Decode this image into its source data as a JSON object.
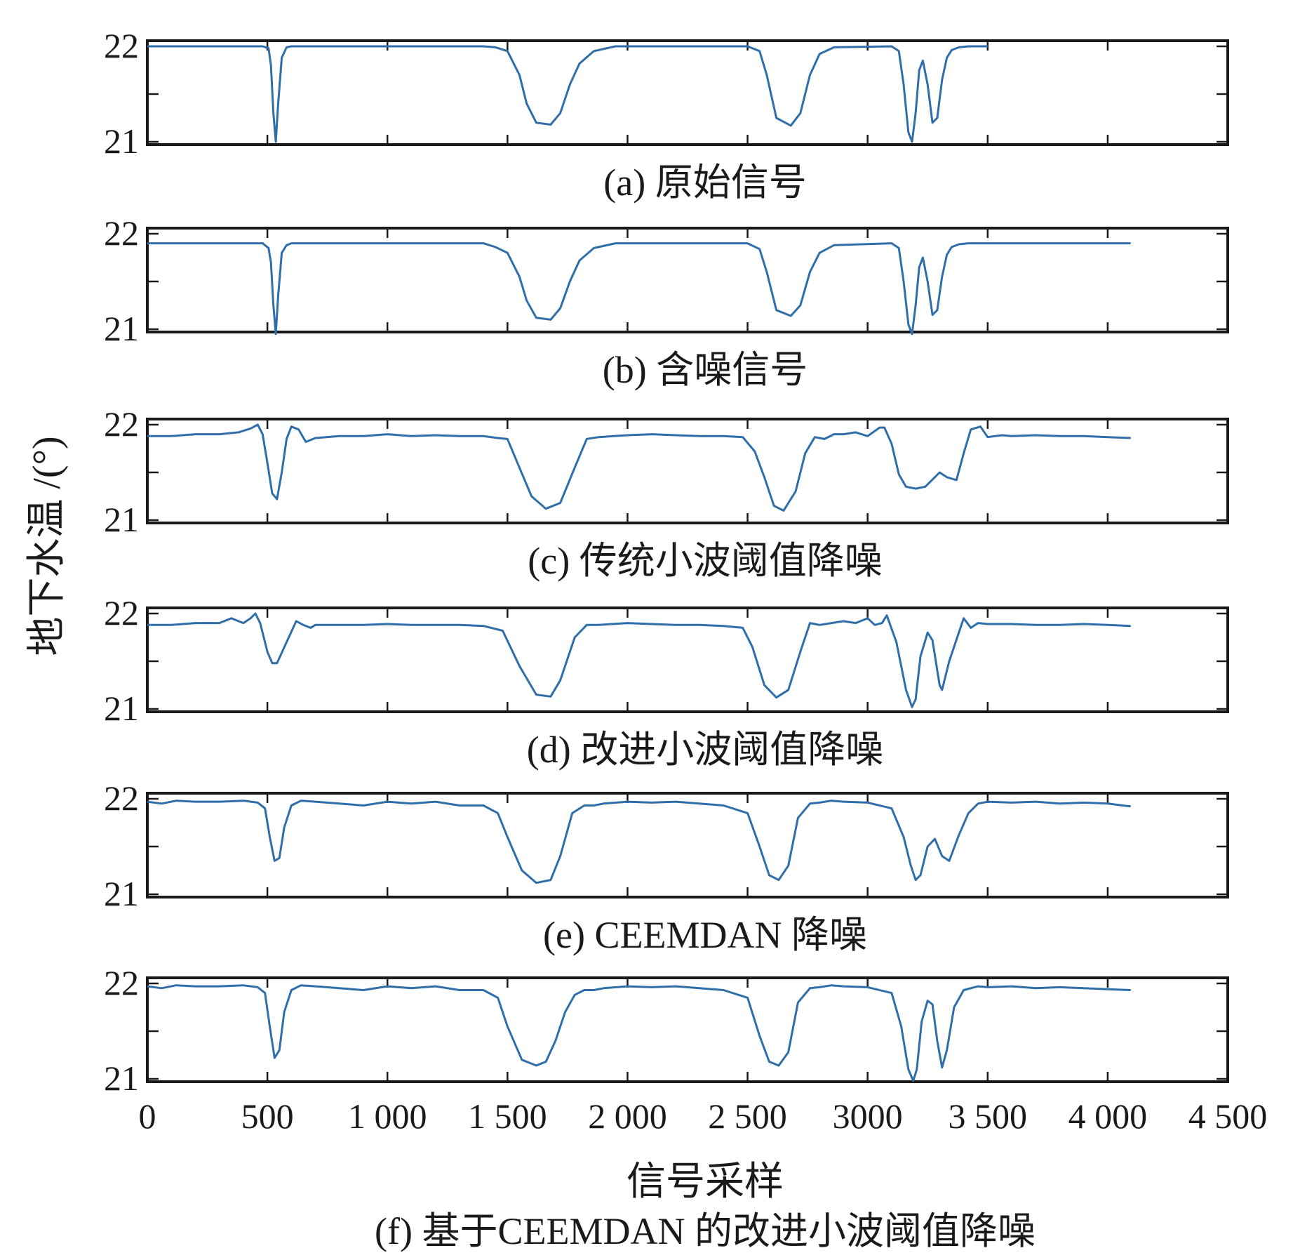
{
  "chart_data": {
    "type": "line",
    "ylabel": "地下水温 /(°)",
    "xlabel": "信号采样",
    "xlim": [
      0,
      4500
    ],
    "x_ticks": [
      0,
      500,
      1000,
      1500,
      2000,
      2500,
      3000,
      3500,
      4000,
      4500
    ],
    "x_tick_labels": [
      "0",
      "500",
      "1 000",
      "1 500",
      "2 000",
      "2 500",
      "3000",
      "3 500",
      "4 000",
      "4 500"
    ],
    "line_color": "#2f6ea8",
    "panels": [
      {
        "caption": "(a) 原始信号",
        "ylim": [
          21,
          22
        ],
        "y_ticks": [
          "22",
          "21"
        ],
        "series": [
          {
            "x": [
              0,
              480,
              505,
              515,
              525,
              535,
              545,
              560,
              580,
              600,
              1400,
              1450,
              1500,
              1550,
              1580,
              1620,
              1680,
              1720,
              1760,
              1800,
              1860,
              1950,
              2500,
              2550,
              2580,
              2620,
              2680,
              2720,
              2760,
              2800,
              2860,
              3100,
              3130,
              3150,
              3170,
              3185,
              3200,
              3215,
              3230,
              3250,
              3270,
              3290,
              3310,
              3330,
              3350,
              3380,
              3420,
              3500
            ],
            "y": [
              22,
              22,
              21.98,
              21.8,
              21.3,
              21.0,
              21.4,
              21.88,
              21.99,
              22,
              22,
              21.99,
              21.95,
              21.7,
              21.4,
              21.2,
              21.18,
              21.3,
              21.6,
              21.82,
              21.95,
              22,
              22,
              21.95,
              21.7,
              21.25,
              21.17,
              21.3,
              21.7,
              21.92,
              21.99,
              22,
              21.95,
              21.6,
              21.1,
              21.0,
              21.3,
              21.75,
              21.85,
              21.6,
              21.2,
              21.25,
              21.65,
              21.88,
              21.96,
              21.99,
              22,
              22
            ]
          }
        ]
      },
      {
        "caption": "(b) 含噪信号",
        "ylim": [
          21,
          22
        ],
        "y_ticks": [
          "22",
          "21"
        ],
        "series": [
          {
            "x": [
              0,
              480,
              505,
              515,
              525,
              535,
              545,
              560,
              580,
              600,
              1400,
              1450,
              1500,
              1550,
              1580,
              1620,
              1680,
              1720,
              1760,
              1800,
              1860,
              1950,
              2500,
              2550,
              2580,
              2620,
              2680,
              2720,
              2760,
              2800,
              2860,
              3100,
              3130,
              3150,
              3170,
              3185,
              3200,
              3215,
              3230,
              3250,
              3270,
              3290,
              3310,
              3330,
              3350,
              3380,
              3420,
              4096
            ],
            "y": [
              21.9,
              21.9,
              21.85,
              21.7,
              21.25,
              20.95,
              21.35,
              21.8,
              21.88,
              21.9,
              21.9,
              21.86,
              21.8,
              21.55,
              21.3,
              21.12,
              21.1,
              21.22,
              21.5,
              21.72,
              21.85,
              21.9,
              21.9,
              21.84,
              21.6,
              21.2,
              21.14,
              21.25,
              21.6,
              21.8,
              21.88,
              21.9,
              21.85,
              21.5,
              21.05,
              20.95,
              21.25,
              21.65,
              21.75,
              21.5,
              21.15,
              21.2,
              21.55,
              21.78,
              21.86,
              21.89,
              21.9,
              21.9
            ]
          }
        ]
      },
      {
        "caption": "(c) 传统小波阈值降噪",
        "ylim": [
          21,
          22
        ],
        "y_ticks": [
          "22",
          "21"
        ],
        "series": [
          {
            "x": [
              0,
              100,
              200,
              300,
              380,
              430,
              460,
              480,
              500,
              520,
              540,
              560,
              580,
              600,
              630,
              660,
              700,
              800,
              900,
              1000,
              1100,
              1200,
              1300,
              1400,
              1460,
              1500,
              1550,
              1600,
              1660,
              1720,
              1780,
              1830,
              1880,
              2000,
              2100,
              2200,
              2300,
              2400,
              2480,
              2530,
              2570,
              2610,
              2650,
              2700,
              2740,
              2780,
              2820,
              2860,
              2900,
              2950,
              3000,
              3050,
              3070,
              3100,
              3130,
              3160,
              3200,
              3240,
              3280,
              3300,
              3330,
              3370,
              3400,
              3430,
              3470,
              3500,
              3560,
              3600,
              3700,
              3800,
              3900,
              4000,
              4096
            ],
            "y": [
              21.88,
              21.88,
              21.9,
              21.9,
              21.92,
              21.96,
              22.0,
              21.9,
              21.6,
              21.28,
              21.22,
              21.5,
              21.85,
              21.98,
              21.95,
              21.82,
              21.86,
              21.88,
              21.88,
              21.9,
              21.88,
              21.89,
              21.88,
              21.88,
              21.86,
              21.85,
              21.55,
              21.25,
              21.12,
              21.18,
              21.55,
              21.85,
              21.87,
              21.89,
              21.9,
              21.89,
              21.88,
              21.88,
              21.87,
              21.72,
              21.45,
              21.15,
              21.1,
              21.3,
              21.7,
              21.87,
              21.85,
              21.9,
              21.9,
              21.92,
              21.88,
              21.97,
              21.97,
              21.8,
              21.48,
              21.35,
              21.33,
              21.35,
              21.45,
              21.5,
              21.45,
              21.42,
              21.7,
              21.95,
              21.98,
              21.87,
              21.89,
              21.88,
              21.89,
              21.88,
              21.88,
              21.87,
              21.86
            ]
          }
        ]
      },
      {
        "caption": "(d) 改进小波阈值降噪",
        "ylim": [
          21,
          22
        ],
        "y_ticks": [
          "22",
          "21"
        ],
        "series": [
          {
            "x": [
              0,
              100,
              200,
              300,
              350,
              400,
              430,
              450,
              470,
              500,
              520,
              540,
              580,
              620,
              650,
              680,
              700,
              800,
              900,
              1000,
              1100,
              1200,
              1300,
              1400,
              1480,
              1550,
              1620,
              1680,
              1720,
              1780,
              1830,
              1880,
              2000,
              2100,
              2200,
              2300,
              2400,
              2480,
              2520,
              2570,
              2620,
              2670,
              2720,
              2760,
              2800,
              2850,
              2900,
              2950,
              3000,
              3030,
              3060,
              3080,
              3120,
              3160,
              3185,
              3200,
              3220,
              3250,
              3270,
              3300,
              3310,
              3340,
              3380,
              3400,
              3430,
              3460,
              3500,
              3600,
              3700,
              3800,
              3900,
              4000,
              4096
            ],
            "y": [
              21.88,
              21.88,
              21.9,
              21.9,
              21.95,
              21.9,
              21.95,
              22.0,
              21.9,
              21.6,
              21.48,
              21.48,
              21.7,
              21.92,
              21.88,
              21.85,
              21.88,
              21.88,
              21.88,
              21.89,
              21.88,
              21.88,
              21.88,
              21.87,
              21.82,
              21.45,
              21.15,
              21.13,
              21.3,
              21.75,
              21.88,
              21.88,
              21.9,
              21.89,
              21.88,
              21.88,
              21.87,
              21.85,
              21.65,
              21.25,
              21.12,
              21.2,
              21.6,
              21.9,
              21.88,
              21.9,
              21.92,
              21.9,
              21.95,
              21.88,
              21.9,
              21.98,
              21.7,
              21.2,
              21.02,
              21.1,
              21.55,
              21.8,
              21.72,
              21.25,
              21.2,
              21.5,
              21.8,
              21.95,
              21.85,
              21.9,
              21.89,
              21.89,
              21.88,
              21.88,
              21.89,
              21.88,
              21.87
            ]
          }
        ]
      },
      {
        "caption": "(e) CEEMDAN 降噪",
        "ylim": [
          21,
          22
        ],
        "y_ticks": [
          "22",
          "21"
        ],
        "series": [
          {
            "x": [
              0,
              60,
              120,
              200,
              300,
              400,
              460,
              490,
              510,
              530,
              550,
              570,
              600,
              640,
              700,
              800,
              900,
              1000,
              1100,
              1200,
              1300,
              1400,
              1460,
              1500,
              1560,
              1620,
              1680,
              1720,
              1770,
              1820,
              1860,
              1900,
              2000,
              2100,
              2200,
              2300,
              2400,
              2500,
              2550,
              2590,
              2630,
              2670,
              2710,
              2760,
              2800,
              2850,
              2900,
              3000,
              3100,
              3150,
              3180,
              3200,
              3220,
              3250,
              3280,
              3310,
              3340,
              3380,
              3420,
              3460,
              3500,
              3600,
              3700,
              3800,
              3900,
              4000,
              4096
            ],
            "y": [
              21.97,
              21.95,
              21.98,
              21.97,
              21.97,
              21.98,
              21.96,
              21.9,
              21.6,
              21.35,
              21.38,
              21.7,
              21.93,
              21.98,
              21.97,
              21.95,
              21.93,
              21.97,
              21.95,
              21.97,
              21.93,
              21.93,
              21.85,
              21.6,
              21.25,
              21.12,
              21.15,
              21.4,
              21.85,
              21.93,
              21.93,
              21.95,
              21.97,
              21.96,
              21.97,
              21.95,
              21.93,
              21.85,
              21.5,
              21.2,
              21.15,
              21.3,
              21.8,
              21.95,
              21.96,
              21.98,
              21.97,
              21.96,
              21.9,
              21.6,
              21.3,
              21.15,
              21.2,
              21.5,
              21.58,
              21.4,
              21.35,
              21.62,
              21.85,
              21.95,
              21.97,
              21.96,
              21.97,
              21.95,
              21.96,
              21.95,
              21.92
            ]
          }
        ]
      },
      {
        "caption": "(f) 基于CEEMDAN 的改进小波阈值降噪",
        "ylim": [
          21,
          22
        ],
        "y_ticks": [
          "22",
          "21"
        ],
        "series": [
          {
            "x": [
              0,
              60,
              120,
              200,
              300,
              400,
              460,
              490,
              510,
              530,
              550,
              570,
              600,
              640,
              700,
              800,
              900,
              1000,
              1100,
              1200,
              1300,
              1400,
              1460,
              1500,
              1560,
              1620,
              1660,
              1700,
              1740,
              1780,
              1820,
              1860,
              1900,
              2000,
              2100,
              2200,
              2300,
              2400,
              2500,
              2550,
              2590,
              2630,
              2670,
              2710,
              2760,
              2800,
              2850,
              2900,
              3000,
              3100,
              3140,
              3170,
              3190,
              3205,
              3225,
              3250,
              3270,
              3290,
              3310,
              3330,
              3360,
              3400,
              3460,
              3500,
              3600,
              3700,
              3800,
              3900,
              4000,
              4096
            ],
            "y": [
              21.97,
              21.95,
              21.98,
              21.97,
              21.97,
              21.98,
              21.96,
              21.9,
              21.55,
              21.22,
              21.3,
              21.7,
              21.93,
              21.98,
              21.97,
              21.95,
              21.93,
              21.97,
              21.95,
              21.97,
              21.93,
              21.93,
              21.85,
              21.55,
              21.2,
              21.14,
              21.18,
              21.4,
              21.7,
              21.88,
              21.93,
              21.93,
              21.95,
              21.97,
              21.96,
              21.97,
              21.95,
              21.93,
              21.85,
              21.45,
              21.18,
              21.14,
              21.28,
              21.8,
              21.95,
              21.96,
              21.98,
              21.97,
              21.96,
              21.9,
              21.55,
              21.1,
              20.98,
              21.1,
              21.6,
              21.82,
              21.78,
              21.4,
              21.12,
              21.3,
              21.75,
              21.93,
              21.97,
              21.96,
              21.97,
              21.95,
              21.96,
              21.95,
              21.94,
              21.93
            ]
          }
        ]
      }
    ]
  }
}
